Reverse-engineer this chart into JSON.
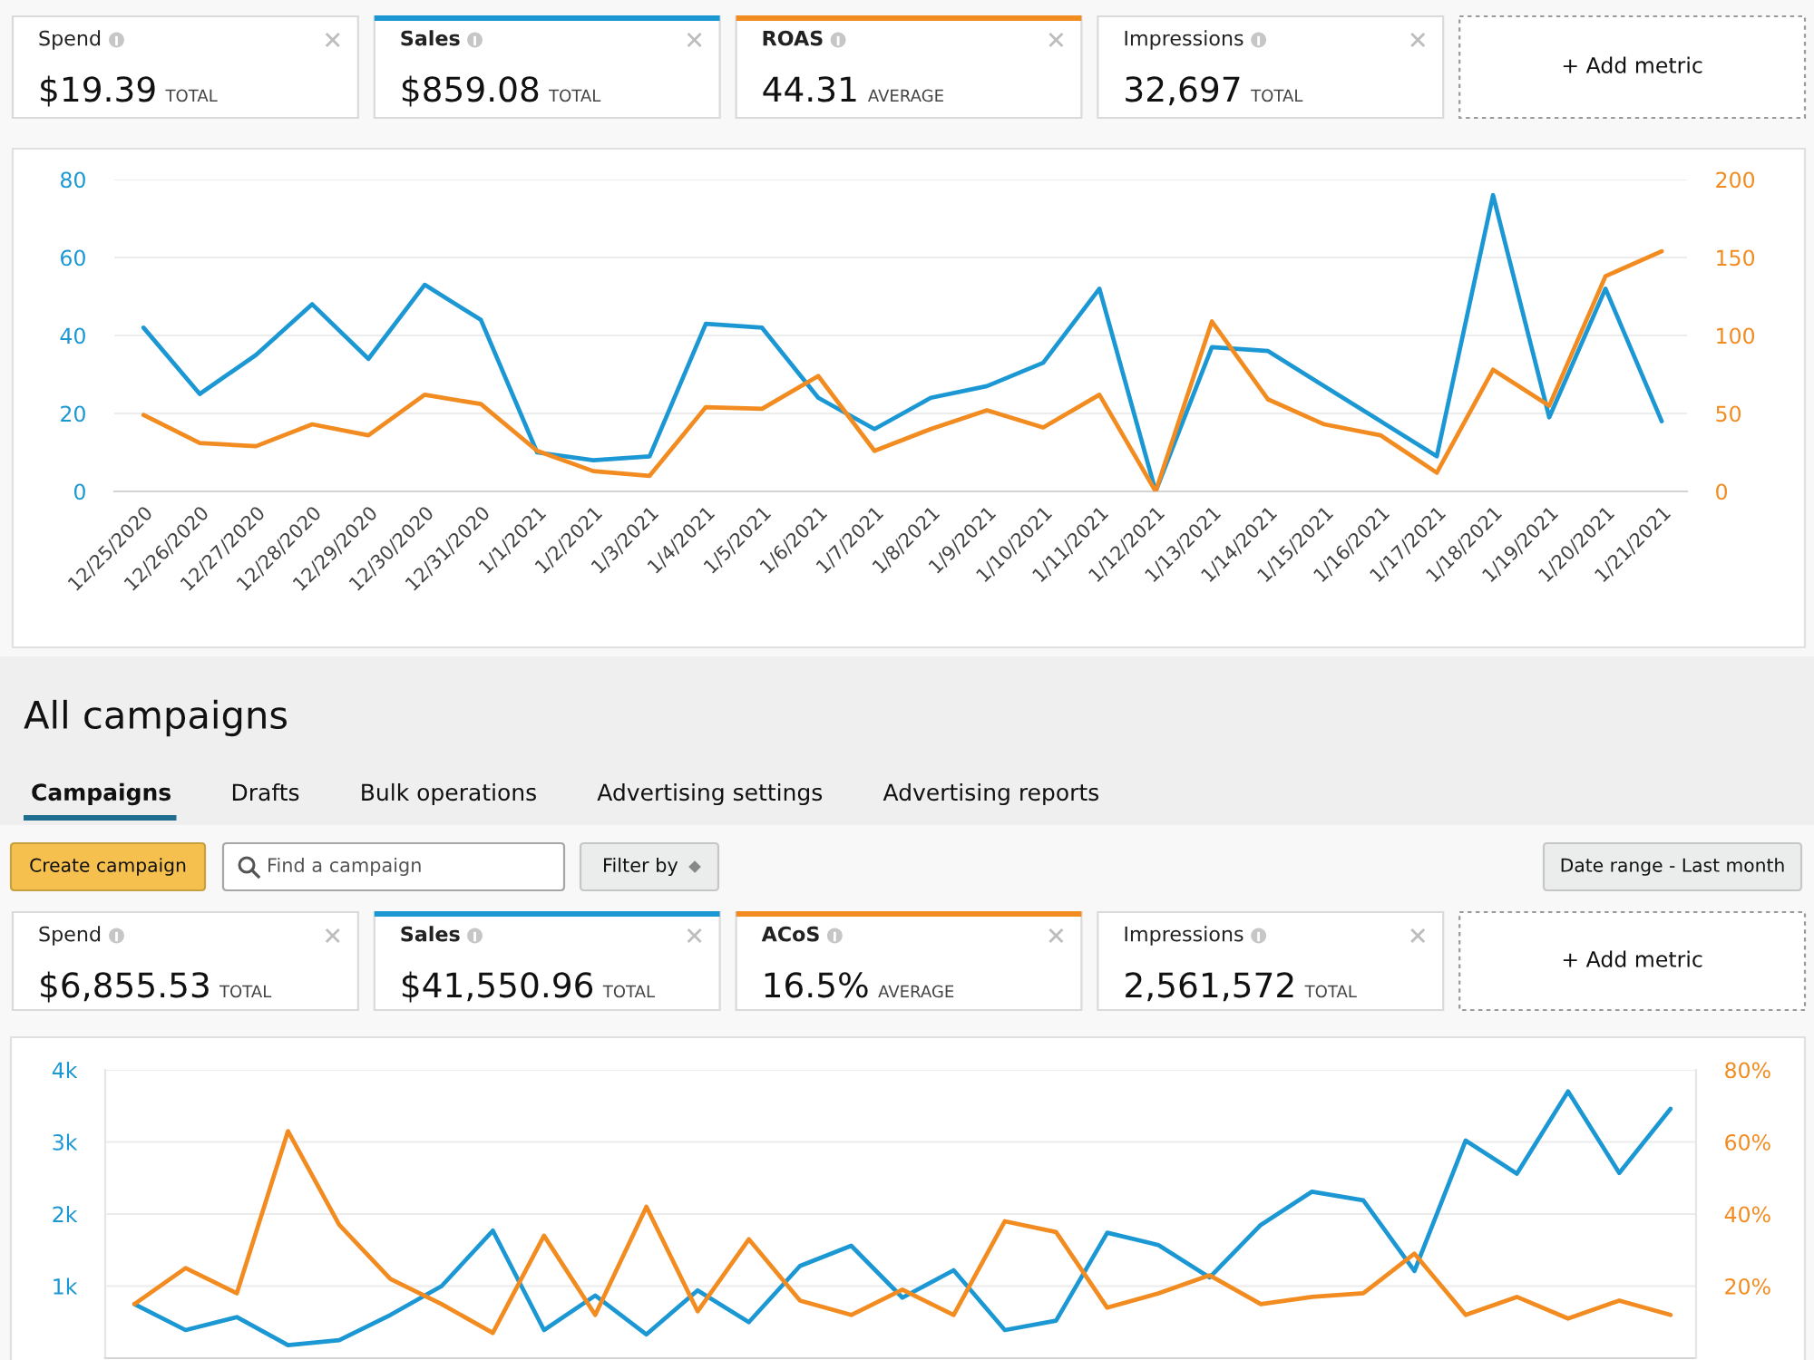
{
  "chart_data": [
    {
      "type": "other",
      "categories": [
        "Spend",
        "Sales",
        "ROAS",
        "Impressions"
      ],
      "value_labels": [
        "$19.39",
        "$859.08",
        "44.31",
        "32,697"
      ],
      "annotations": [
        "TOTAL",
        "TOTAL",
        "AVERAGE",
        "TOTAL",
        "+ Add metric"
      ]
    },
    {
      "type": "line",
      "categories": [
        "12/25/2020",
        "12/26/2020",
        "12/27/2020",
        "12/28/2020",
        "12/29/2020",
        "12/30/2020",
        "12/31/2020",
        "1/1/2021",
        "1/2/2021",
        "1/3/2021",
        "1/4/2021",
        "1/5/2021",
        "1/6/2021",
        "1/7/2021",
        "1/8/2021",
        "1/9/2021",
        "1/10/2021",
        "1/11/2021",
        "1/12/2021",
        "1/13/2021",
        "1/14/2021",
        "1/15/2021",
        "1/16/2021",
        "1/17/2021",
        "1/18/2021",
        "1/19/2021",
        "1/20/2021",
        "1/21/2021"
      ],
      "series": [
        {
          "color": "#1b98d4",
          "values": [
            42,
            25,
            35,
            48,
            34,
            53,
            44,
            10,
            8,
            9,
            43,
            42,
            24,
            16,
            24,
            27,
            33,
            52,
            0,
            37,
            36,
            27,
            18,
            9,
            76,
            19,
            52,
            18
          ]
        },
        {
          "color": "#f28b20",
          "axis": "y2",
          "values": [
            49,
            31,
            29,
            43,
            36,
            62,
            56,
            26,
            13,
            10,
            54,
            53,
            74,
            26,
            40,
            52,
            41,
            62,
            0,
            109,
            59,
            43,
            36,
            12,
            78,
            55,
            138,
            154
          ]
        }
      ],
      "ylim": [
        0,
        80
      ],
      "yticks": [
        0,
        20,
        40,
        60,
        80
      ],
      "y2lim": [
        0,
        200
      ],
      "y2ticks": [
        0,
        50,
        100,
        150,
        200
      ],
      "grid": "y"
    },
    {
      "type": "other",
      "title": "All campaigns",
      "categories": [
        "Campaigns",
        "Drafts",
        "Bulk operations",
        "Advertising settings",
        "Advertising reports"
      ],
      "annotations": [
        "Create campaign",
        "Find a campaign",
        "Filter by",
        "Date range - Last month"
      ]
    },
    {
      "type": "other",
      "categories": [
        "Spend",
        "Sales",
        "ACoS",
        "Impressions"
      ],
      "value_labels": [
        "$6,855.53",
        "$41,550.96",
        "16.5%",
        "2,561,572"
      ],
      "annotations": [
        "TOTAL",
        "TOTAL",
        "AVERAGE",
        "TOTAL",
        "+ Add metric"
      ]
    },
    {
      "type": "line",
      "categories": [
        null,
        null,
        null,
        null,
        null,
        null,
        null,
        null,
        null,
        null,
        null,
        null,
        null,
        null,
        null,
        null,
        null,
        null,
        null,
        null,
        null,
        null,
        null,
        null,
        null,
        null,
        null,
        null,
        null,
        null,
        null
      ],
      "series": [
        {
          "color": "#1b98d4",
          "values": [
            750,
            390,
            570,
            180,
            250,
            600,
            1000,
            1770,
            390,
            870,
            330,
            940,
            500,
            1280,
            1560,
            840,
            1220,
            390,
            520,
            1740,
            1570,
            1120,
            1850,
            2310,
            2190,
            1210,
            3020,
            2560,
            3700,
            2570,
            3460
          ]
        },
        {
          "color": "#f28b20",
          "axis": "y2",
          "values": [
            15,
            25,
            18,
            63,
            37,
            22,
            15,
            7,
            34,
            12,
            42,
            13,
            33,
            16,
            12,
            19,
            12,
            38,
            35,
            14,
            18,
            23,
            15,
            17,
            18,
            29,
            12,
            17,
            11,
            16,
            12
          ]
        }
      ],
      "ylim": [
        0,
        4000
      ],
      "yticks": [
        {
          "value": 1000,
          "label": "1k"
        },
        {
          "value": 2000,
          "label": "2k"
        },
        {
          "value": 3000,
          "label": "3k"
        },
        {
          "value": 4000,
          "label": "4k"
        }
      ],
      "y2lim": [
        0,
        80
      ],
      "y2ticks": [
        {
          "value": 20,
          "label": "20%"
        },
        {
          "value": 40,
          "label": "40%"
        },
        {
          "value": 60,
          "label": "60%"
        },
        {
          "value": 80,
          "label": "80%"
        }
      ],
      "grid": "y",
      "tick_labels": "y"
    }
  ]
}
